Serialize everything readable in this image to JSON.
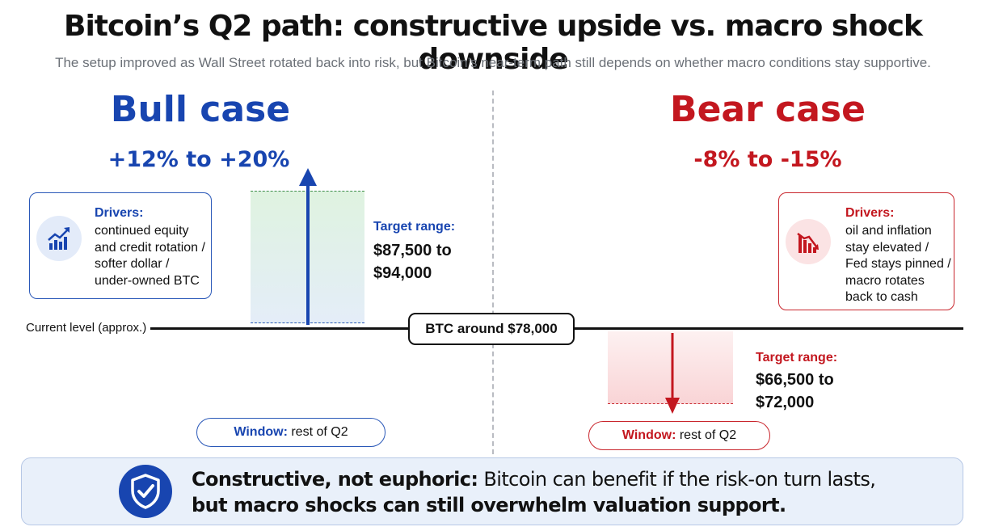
{
  "title": "Bitcoin’s Q2 path: constructive upside vs. macro shock downside",
  "subtitle": "The setup improved as Wall Street rotated back into risk, but Bitcoin’s near-term path still depends on whether macro conditions stay supportive.",
  "bull": {
    "title": "Bull case",
    "range": "+12% to +20%",
    "drivers_heading": "Drivers:",
    "drivers_lines": [
      "continued equity",
      "and credit rotation /",
      "softer dollar /",
      "under-owned BTC"
    ],
    "target_heading": "Target range:",
    "target_lines": [
      "$87,500 to",
      "$94,000"
    ],
    "window_label": "Window:",
    "window_value": "rest of Q2",
    "icon": "trending-up-chart-icon",
    "color": "#1845b0"
  },
  "bear": {
    "title": "Bear case",
    "range": "-8% to -15%",
    "drivers_heading": "Drivers:",
    "drivers_lines": [
      "oil and inflation",
      "stay elevated /",
      "Fed stays pinned /",
      "macro rotates",
      "back to cash"
    ],
    "target_heading": "Target range:",
    "target_lines": [
      "$66,500 to",
      "$72,000"
    ],
    "window_label": "Window:",
    "window_value": "rest of Q2",
    "icon": "trending-down-chart-icon",
    "color": "#c3171f"
  },
  "current": {
    "label": "Current level (approx.)",
    "btc_label": "BTC around $78,000"
  },
  "footer": {
    "bold": "Constructive, not euphoric:",
    "line1_rest": " Bitcoin can benefit if the risk-on turn lasts,",
    "line2": "but macro shocks can still overwhelm valuation support.",
    "icon": "shield-check-icon"
  }
}
